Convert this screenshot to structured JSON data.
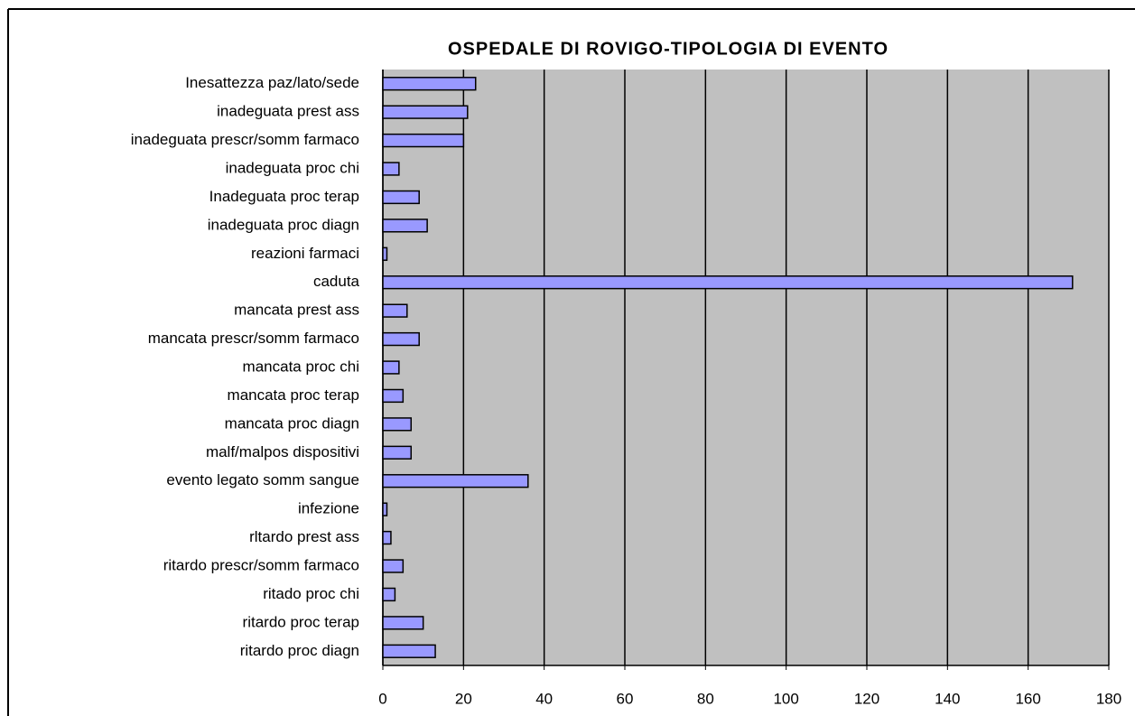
{
  "chart_data": {
    "type": "bar",
    "orientation": "horizontal",
    "title": "OSPEDALE DI ROVIGO-TIPOLOGIA  DI EVENTO",
    "categories": [
      "Inesattezza paz/lato/sede",
      "inadeguata prest ass",
      "inadeguata prescr/somm farmaco",
      "inadeguata proc chi",
      "Inadeguata proc terap",
      "inadeguata proc diagn",
      "reazioni farmaci",
      "caduta",
      "mancata prest ass",
      "mancata prescr/somm farmaco",
      "mancata proc chi",
      "mancata proc terap",
      "mancata proc diagn",
      "malf/malpos dispositivi",
      "evento legato somm sangue",
      "infezione",
      "rltardo prest ass",
      "ritardo prescr/somm farmaco",
      "ritado proc chi",
      "ritardo proc terap",
      "ritardo proc diagn"
    ],
    "values": [
      23,
      21,
      20,
      4,
      9,
      11,
      1,
      171,
      6,
      9,
      4,
      5,
      7,
      7,
      36,
      1,
      2,
      5,
      3,
      10,
      13
    ],
    "color": "#9999ff",
    "xlim": [
      0,
      180
    ],
    "xticks": [
      0,
      20,
      40,
      60,
      80,
      100,
      120,
      140,
      160,
      180
    ],
    "grid": true
  }
}
